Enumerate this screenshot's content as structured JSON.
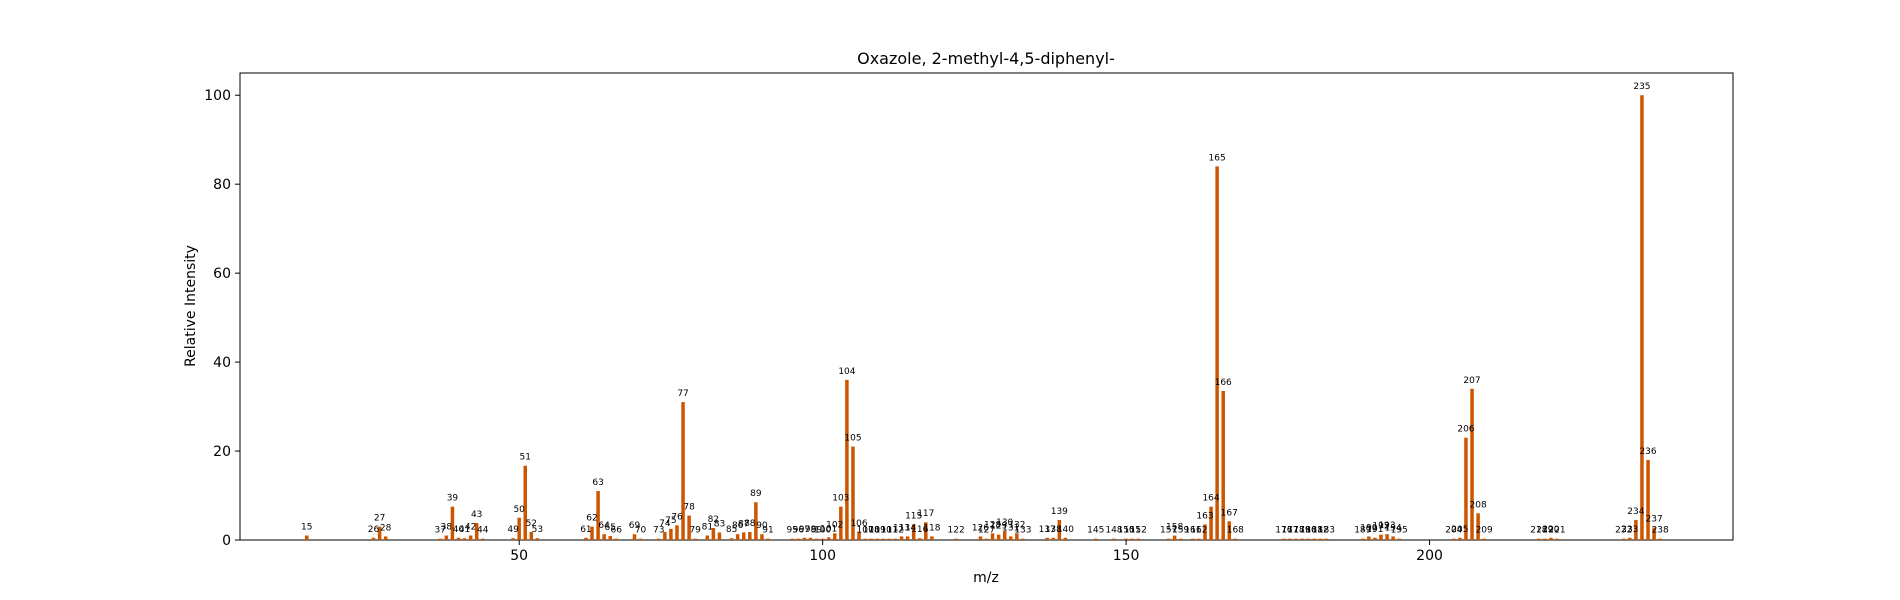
{
  "chart_data": {
    "type": "bar",
    "title": "Oxazole, 2-methyl-4,5-diphenyl-",
    "xlabel": "m/z",
    "ylabel": "Relative Intensity",
    "xlim": [
      4,
      250
    ],
    "ylim": [
      0,
      105
    ],
    "xticks": [
      50,
      100,
      150,
      200
    ],
    "yticks": [
      0,
      20,
      40,
      60,
      80,
      100
    ],
    "bar_color": "#cc5500",
    "grid": false,
    "peaks": [
      {
        "mz": 15,
        "intensity": 1.0
      },
      {
        "mz": 26,
        "intensity": 0.5
      },
      {
        "mz": 27,
        "intensity": 3.0
      },
      {
        "mz": 28,
        "intensity": 0.8
      },
      {
        "mz": 37,
        "intensity": 0.3
      },
      {
        "mz": 38,
        "intensity": 1.0
      },
      {
        "mz": 39,
        "intensity": 7.5
      },
      {
        "mz": 40,
        "intensity": 0.5
      },
      {
        "mz": 41,
        "intensity": 0.4
      },
      {
        "mz": 42,
        "intensity": 1.0
      },
      {
        "mz": 43,
        "intensity": 3.8
      },
      {
        "mz": 44,
        "intensity": 0.3
      },
      {
        "mz": 49,
        "intensity": 0.4
      },
      {
        "mz": 50,
        "intensity": 5.0
      },
      {
        "mz": 51,
        "intensity": 16.7
      },
      {
        "mz": 52,
        "intensity": 1.8
      },
      {
        "mz": 53,
        "intensity": 0.4
      },
      {
        "mz": 61,
        "intensity": 0.5
      },
      {
        "mz": 62,
        "intensity": 3.0
      },
      {
        "mz": 63,
        "intensity": 11.0
      },
      {
        "mz": 64,
        "intensity": 1.3
      },
      {
        "mz": 65,
        "intensity": 0.9
      },
      {
        "mz": 66,
        "intensity": 0.3
      },
      {
        "mz": 69,
        "intensity": 1.3
      },
      {
        "mz": 70,
        "intensity": 0.3
      },
      {
        "mz": 73,
        "intensity": 0.3
      },
      {
        "mz": 74,
        "intensity": 1.8
      },
      {
        "mz": 75,
        "intensity": 2.5
      },
      {
        "mz": 76,
        "intensity": 3.3
      },
      {
        "mz": 77,
        "intensity": 31.0
      },
      {
        "mz": 78,
        "intensity": 5.5
      },
      {
        "mz": 79,
        "intensity": 0.3
      },
      {
        "mz": 81,
        "intensity": 1.0
      },
      {
        "mz": 82,
        "intensity": 2.7
      },
      {
        "mz": 83,
        "intensity": 1.7
      },
      {
        "mz": 85,
        "intensity": 0.4
      },
      {
        "mz": 86,
        "intensity": 1.3
      },
      {
        "mz": 87,
        "intensity": 1.7
      },
      {
        "mz": 88,
        "intensity": 1.8
      },
      {
        "mz": 89,
        "intensity": 8.5
      },
      {
        "mz": 90,
        "intensity": 1.3
      },
      {
        "mz": 91,
        "intensity": 0.3
      },
      {
        "mz": 95,
        "intensity": 0.3
      },
      {
        "mz": 96,
        "intensity": 0.3
      },
      {
        "mz": 97,
        "intensity": 0.5
      },
      {
        "mz": 98,
        "intensity": 0.5
      },
      {
        "mz": 99,
        "intensity": 0.3
      },
      {
        "mz": 100,
        "intensity": 0.3
      },
      {
        "mz": 101,
        "intensity": 0.6
      },
      {
        "mz": 102,
        "intensity": 1.5
      },
      {
        "mz": 103,
        "intensity": 7.5
      },
      {
        "mz": 104,
        "intensity": 36.0
      },
      {
        "mz": 105,
        "intensity": 21.0
      },
      {
        "mz": 106,
        "intensity": 1.8
      },
      {
        "mz": 107,
        "intensity": 0.3
      },
      {
        "mz": 108,
        "intensity": 0.3
      },
      {
        "mz": 109,
        "intensity": 0.3
      },
      {
        "mz": 110,
        "intensity": 0.3
      },
      {
        "mz": 111,
        "intensity": 0.3
      },
      {
        "mz": 112,
        "intensity": 0.3
      },
      {
        "mz": 113,
        "intensity": 0.8
      },
      {
        "mz": 114,
        "intensity": 0.8
      },
      {
        "mz": 115,
        "intensity": 3.5
      },
      {
        "mz": 116,
        "intensity": 0.4
      },
      {
        "mz": 117,
        "intensity": 4.0
      },
      {
        "mz": 118,
        "intensity": 0.8
      },
      {
        "mz": 122,
        "intensity": 0.3
      },
      {
        "mz": 126,
        "intensity": 0.8
      },
      {
        "mz": 127,
        "intensity": 0.3
      },
      {
        "mz": 128,
        "intensity": 1.5
      },
      {
        "mz": 129,
        "intensity": 1.2
      },
      {
        "mz": 130,
        "intensity": 2.0
      },
      {
        "mz": 131,
        "intensity": 0.8
      },
      {
        "mz": 132,
        "intensity": 1.5
      },
      {
        "mz": 133,
        "intensity": 0.3
      },
      {
        "mz": 137,
        "intensity": 0.5
      },
      {
        "mz": 138,
        "intensity": 0.5
      },
      {
        "mz": 139,
        "intensity": 4.5
      },
      {
        "mz": 140,
        "intensity": 0.5
      },
      {
        "mz": 145,
        "intensity": 0.3
      },
      {
        "mz": 148,
        "intensity": 0.3
      },
      {
        "mz": 150,
        "intensity": 0.3
      },
      {
        "mz": 151,
        "intensity": 0.3
      },
      {
        "mz": 152,
        "intensity": 0.3
      },
      {
        "mz": 157,
        "intensity": 0.3
      },
      {
        "mz": 158,
        "intensity": 1.0
      },
      {
        "mz": 159,
        "intensity": 0.3
      },
      {
        "mz": 161,
        "intensity": 0.3
      },
      {
        "mz": 162,
        "intensity": 0.3
      },
      {
        "mz": 163,
        "intensity": 3.5
      },
      {
        "mz": 164,
        "intensity": 7.5
      },
      {
        "mz": 165,
        "intensity": 84.0
      },
      {
        "mz": 166,
        "intensity": 33.5
      },
      {
        "mz": 167,
        "intensity": 4.2
      },
      {
        "mz": 168,
        "intensity": 0.3
      },
      {
        "mz": 176,
        "intensity": 0.3
      },
      {
        "mz": 177,
        "intensity": 0.3
      },
      {
        "mz": 178,
        "intensity": 0.3
      },
      {
        "mz": 179,
        "intensity": 0.3
      },
      {
        "mz": 180,
        "intensity": 0.3
      },
      {
        "mz": 181,
        "intensity": 0.3
      },
      {
        "mz": 182,
        "intensity": 0.3
      },
      {
        "mz": 183,
        "intensity": 0.3
      },
      {
        "mz": 189,
        "intensity": 0.3
      },
      {
        "mz": 190,
        "intensity": 0.8
      },
      {
        "mz": 191,
        "intensity": 0.5
      },
      {
        "mz": 192,
        "intensity": 1.2
      },
      {
        "mz": 193,
        "intensity": 1.3
      },
      {
        "mz": 194,
        "intensity": 0.8
      },
      {
        "mz": 195,
        "intensity": 0.3
      },
      {
        "mz": 204,
        "intensity": 0.3
      },
      {
        "mz": 205,
        "intensity": 0.5
      },
      {
        "mz": 206,
        "intensity": 23.0
      },
      {
        "mz": 207,
        "intensity": 34.0
      },
      {
        "mz": 208,
        "intensity": 6.0
      },
      {
        "mz": 209,
        "intensity": 0.3
      },
      {
        "mz": 218,
        "intensity": 0.3
      },
      {
        "mz": 219,
        "intensity": 0.3
      },
      {
        "mz": 220,
        "intensity": 0.5
      },
      {
        "mz": 221,
        "intensity": 0.3
      },
      {
        "mz": 232,
        "intensity": 0.3
      },
      {
        "mz": 233,
        "intensity": 0.5
      },
      {
        "mz": 234,
        "intensity": 4.5
      },
      {
        "mz": 235,
        "intensity": 100.0
      },
      {
        "mz": 236,
        "intensity": 18.0
      },
      {
        "mz": 237,
        "intensity": 2.8
      },
      {
        "mz": 238,
        "intensity": 0.3
      }
    ]
  }
}
